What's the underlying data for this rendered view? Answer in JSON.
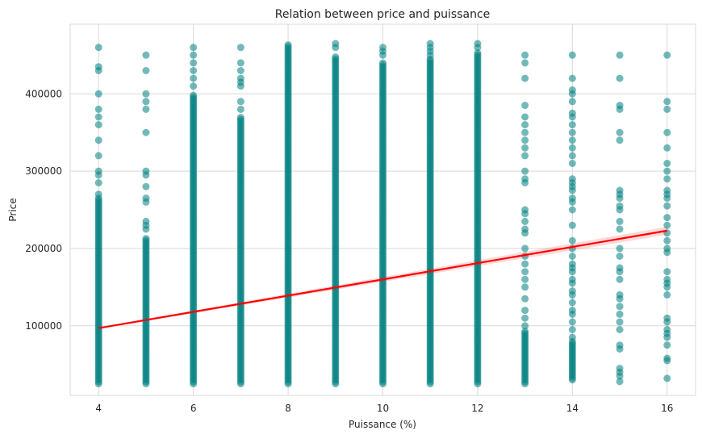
{
  "chart_data": {
    "type": "scatter",
    "title": "Relation between price and puissance",
    "xlabel": "Puissance (%)",
    "ylabel": "Price",
    "xlim": [
      3.4,
      16.6
    ],
    "ylim": [
      10000,
      490000
    ],
    "xticks": [
      4,
      6,
      8,
      10,
      12,
      14,
      16
    ],
    "yticks": [
      100000,
      200000,
      300000,
      400000
    ],
    "ytick_labels": [
      "100000",
      "200000",
      "300000",
      "400000"
    ],
    "grid": true,
    "colors": {
      "points": "#008080",
      "regression": "#ff0000",
      "grid": "#d9d9d9",
      "background": "#ffffff"
    },
    "point_columns": [
      {
        "x": 4,
        "dense_range": [
          25000,
          265000
        ],
        "outliers": [
          270000,
          285000,
          295000,
          300000,
          320000,
          340000,
          360000,
          370000,
          380000,
          400000,
          430000,
          435000,
          460000
        ]
      },
      {
        "x": 5,
        "dense_range": [
          25000,
          215000
        ],
        "outliers": [
          225000,
          230000,
          235000,
          260000,
          265000,
          280000,
          295000,
          300000,
          350000,
          380000,
          390000,
          400000,
          430000,
          450000
        ]
      },
      {
        "x": 6,
        "dense_range": [
          25000,
          400000
        ],
        "outliers": [
          410000,
          420000,
          430000,
          440000,
          450000,
          460000
        ]
      },
      {
        "x": 7,
        "dense_range": [
          25000,
          370000
        ],
        "outliers": [
          380000,
          390000,
          410000,
          415000,
          420000,
          430000,
          440000,
          460000
        ]
      },
      {
        "x": 8,
        "dense_range": [
          25000,
          465000
        ],
        "outliers": []
      },
      {
        "x": 9,
        "dense_range": [
          25000,
          450000
        ],
        "outliers": [
          460000,
          465000
        ]
      },
      {
        "x": 10,
        "dense_range": [
          25000,
          440000
        ],
        "outliers": [
          450000,
          455000,
          460000
        ]
      },
      {
        "x": 11,
        "dense_range": [
          25000,
          445000
        ],
        "outliers": [
          450000,
          455000,
          460000,
          465000
        ]
      },
      {
        "x": 12,
        "dense_range": [
          25000,
          455000
        ],
        "outliers": [
          460000,
          465000
        ]
      },
      {
        "x": 13,
        "dense_range": [
          25000,
          95000
        ],
        "outliers": [
          100000,
          110000,
          120000,
          135000,
          150000,
          160000,
          170000,
          180000,
          190000,
          200000,
          220000,
          225000,
          235000,
          245000,
          250000,
          285000,
          290000,
          300000,
          320000,
          330000,
          340000,
          350000,
          360000,
          370000,
          385000,
          420000,
          440000,
          450000
        ]
      },
      {
        "x": 14,
        "dense_range": [
          30000,
          80000
        ],
        "outliers": [
          85000,
          95000,
          105000,
          115000,
          120000,
          130000,
          140000,
          145000,
          155000,
          160000,
          170000,
          175000,
          180000,
          190000,
          200000,
          210000,
          230000,
          250000,
          260000,
          265000,
          275000,
          280000,
          285000,
          290000,
          310000,
          320000,
          330000,
          340000,
          350000,
          360000,
          370000,
          375000,
          390000,
          400000,
          405000,
          420000,
          450000
        ]
      },
      {
        "x": 15,
        "dense_range": [],
        "outliers": [
          28000,
          35000,
          40000,
          45000,
          70000,
          75000,
          95000,
          105000,
          115000,
          125000,
          135000,
          140000,
          160000,
          170000,
          175000,
          190000,
          200000,
          225000,
          235000,
          250000,
          255000,
          265000,
          270000,
          275000,
          340000,
          350000,
          380000,
          385000,
          420000,
          450000
        ]
      },
      {
        "x": 16,
        "dense_range": [],
        "outliers": [
          32000,
          55000,
          58000,
          75000,
          85000,
          90000,
          95000,
          105000,
          110000,
          140000,
          150000,
          155000,
          160000,
          170000,
          195000,
          200000,
          210000,
          220000,
          230000,
          240000,
          255000,
          265000,
          270000,
          275000,
          290000,
          300000,
          310000,
          330000,
          350000,
          380000,
          390000,
          450000
        ]
      }
    ],
    "regression": {
      "x": [
        4,
        16
      ],
      "y": [
        97000,
        223000
      ]
    }
  }
}
